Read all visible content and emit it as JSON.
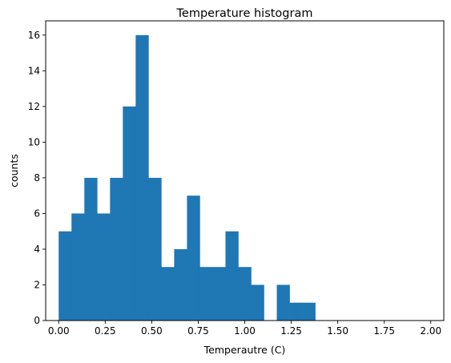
{
  "chart_data": {
    "type": "bar",
    "title": "Temperature histogram",
    "xlabel": "Temperautre (C)",
    "ylabel": "counts",
    "xlim": [
      -0.07,
      2.07
    ],
    "ylim": [
      0,
      16.8
    ],
    "xticks": [
      0.0,
      0.25,
      0.5,
      0.75,
      1.0,
      1.25,
      1.5,
      1.75,
      2.0
    ],
    "xtick_labels": [
      "0.00",
      "0.25",
      "0.50",
      "0.75",
      "1.00",
      "1.25",
      "1.50",
      "1.75",
      "2.00"
    ],
    "yticks": [
      0,
      2,
      4,
      6,
      8,
      10,
      12,
      14,
      16
    ],
    "ytick_labels": [
      "0",
      "2",
      "4",
      "6",
      "8",
      "10",
      "12",
      "14",
      "16"
    ],
    "bin_width": 0.0689,
    "bins": [
      {
        "x0": 0.0,
        "x1": 0.0689,
        "count": 5
      },
      {
        "x0": 0.0689,
        "x1": 0.1379,
        "count": 6
      },
      {
        "x0": 0.1379,
        "x1": 0.2069,
        "count": 8
      },
      {
        "x0": 0.2069,
        "x1": 0.2759,
        "count": 6
      },
      {
        "x0": 0.2759,
        "x1": 0.3448,
        "count": 8
      },
      {
        "x0": 0.3448,
        "x1": 0.4138,
        "count": 12
      },
      {
        "x0": 0.4138,
        "x1": 0.4828,
        "count": 16
      },
      {
        "x0": 0.4828,
        "x1": 0.5517,
        "count": 8
      },
      {
        "x0": 0.5517,
        "x1": 0.6207,
        "count": 3
      },
      {
        "x0": 0.6207,
        "x1": 0.6897,
        "count": 4
      },
      {
        "x0": 0.6897,
        "x1": 0.7586,
        "count": 7
      },
      {
        "x0": 0.7586,
        "x1": 0.8276,
        "count": 3
      },
      {
        "x0": 0.8276,
        "x1": 0.8966,
        "count": 3
      },
      {
        "x0": 0.8966,
        "x1": 0.9655,
        "count": 5
      },
      {
        "x0": 0.9655,
        "x1": 1.0345,
        "count": 3
      },
      {
        "x0": 1.0345,
        "x1": 1.1034,
        "count": 2
      },
      {
        "x0": 1.1034,
        "x1": 1.1724,
        "count": 0
      },
      {
        "x0": 1.1724,
        "x1": 1.2414,
        "count": 2
      },
      {
        "x0": 1.2414,
        "x1": 1.3103,
        "count": 1
      },
      {
        "x0": 1.3103,
        "x1": 1.3793,
        "count": 1
      },
      {
        "x0": 1.3793,
        "x1": 1.4483,
        "count": 0
      },
      {
        "x0": 1.4483,
        "x1": 1.5172,
        "count": 0
      },
      {
        "x0": 1.5172,
        "x1": 1.5862,
        "count": 0
      },
      {
        "x0": 1.5862,
        "x1": 1.6552,
        "count": 0
      },
      {
        "x0": 1.6552,
        "x1": 1.7241,
        "count": 0
      },
      {
        "x0": 1.7241,
        "x1": 1.7931,
        "count": 0
      },
      {
        "x0": 1.7931,
        "x1": 1.8621,
        "count": 0
      },
      {
        "x0": 1.8621,
        "x1": 1.931,
        "count": 0
      },
      {
        "x0": 1.931,
        "x1": 2.0,
        "count": 0
      }
    ],
    "bar_color": "#1f77b4",
    "grid": false,
    "legend": "none"
  }
}
